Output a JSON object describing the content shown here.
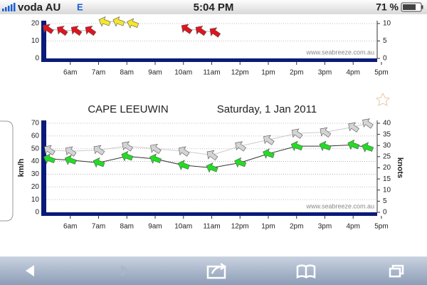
{
  "status_bar": {
    "carrier": "voda AU",
    "network": "E",
    "time": "5:04 PM",
    "battery": "71 %"
  },
  "chart_data": [
    {
      "type": "line",
      "source": "www.seabreeze.com.au",
      "x": [
        5.2,
        5.7,
        6.2,
        6.7,
        7.2,
        7.7,
        8.2,
        10.1,
        10.6,
        11.1
      ],
      "series": [
        {
          "color": "#e0141e",
          "line_color": "#bbbbbb",
          "values": [
            17,
            16,
            16,
            16,
            null,
            null,
            null,
            17,
            16,
            15
          ]
        },
        {
          "color": "#f5e62a",
          "line_color": "#bbbbbb",
          "values": [
            null,
            null,
            null,
            null,
            21,
            21,
            20,
            null,
            null,
            null
          ]
        }
      ],
      "xlim": [
        5.15,
        16.85
      ],
      "xticks": [
        {
          "value": 6,
          "label": "6am"
        },
        {
          "value": 7,
          "label": "7am"
        },
        {
          "value": 8,
          "label": "8am"
        },
        {
          "value": 9,
          "label": "9am"
        },
        {
          "value": 10,
          "label": "10am"
        },
        {
          "value": 11,
          "label": "11am"
        },
        {
          "value": 12,
          "label": "12pm"
        },
        {
          "value": 13,
          "label": "1pm"
        },
        {
          "value": 14,
          "label": "2pm"
        },
        {
          "value": 15,
          "label": "3pm"
        },
        {
          "value": 16,
          "label": "4pm"
        },
        {
          "value": 17,
          "label": "5pm"
        }
      ],
      "ylim": [
        0,
        20
      ],
      "yticks": [
        0,
        10,
        20
      ],
      "y2lim": [
        0,
        10
      ],
      "y2ticks": [
        0,
        5,
        10
      ],
      "grid": true
    },
    {
      "type": "line",
      "title": "CAPE LEEUWIN",
      "subtitle": "Saturday, 1 Jan 2011",
      "y_label": "km/h",
      "y2_label": "knots",
      "source": "www.seabreeze.com.au",
      "x": [
        5.25,
        6,
        7,
        8,
        9,
        10,
        11,
        12,
        13,
        14,
        15,
        16,
        16.5
      ],
      "series": [
        {
          "color": "#d4d4d4",
          "line_color": "#cccccc",
          "values": [
            49,
            48,
            49,
            52,
            50,
            48,
            45,
            52,
            57,
            62,
            63,
            67,
            70
          ]
        },
        {
          "color": "#22dd22",
          "line_color": "#333333",
          "values": [
            42,
            41,
            39,
            44,
            42,
            37,
            35,
            39,
            46,
            52,
            52,
            53,
            51
          ]
        }
      ],
      "xlim": [
        5.15,
        16.85
      ],
      "xticks": [
        {
          "value": 6,
          "label": "6am"
        },
        {
          "value": 7,
          "label": "7am"
        },
        {
          "value": 8,
          "label": "8am"
        },
        {
          "value": 9,
          "label": "9am"
        },
        {
          "value": 10,
          "label": "10am"
        },
        {
          "value": 11,
          "label": "11am"
        },
        {
          "value": 12,
          "label": "12pm"
        },
        {
          "value": 13,
          "label": "1pm"
        },
        {
          "value": 14,
          "label": "2pm"
        },
        {
          "value": 15,
          "label": "3pm"
        },
        {
          "value": 16,
          "label": "4pm"
        },
        {
          "value": 17,
          "label": "5pm"
        }
      ],
      "ylim": [
        0,
        70
      ],
      "yticks": [
        0,
        10,
        20,
        30,
        40,
        50,
        60,
        70
      ],
      "y2lim": [
        0,
        40
      ],
      "y2ticks": [
        0,
        5,
        10,
        15,
        20,
        25,
        30,
        35,
        40
      ],
      "grid": true
    }
  ]
}
